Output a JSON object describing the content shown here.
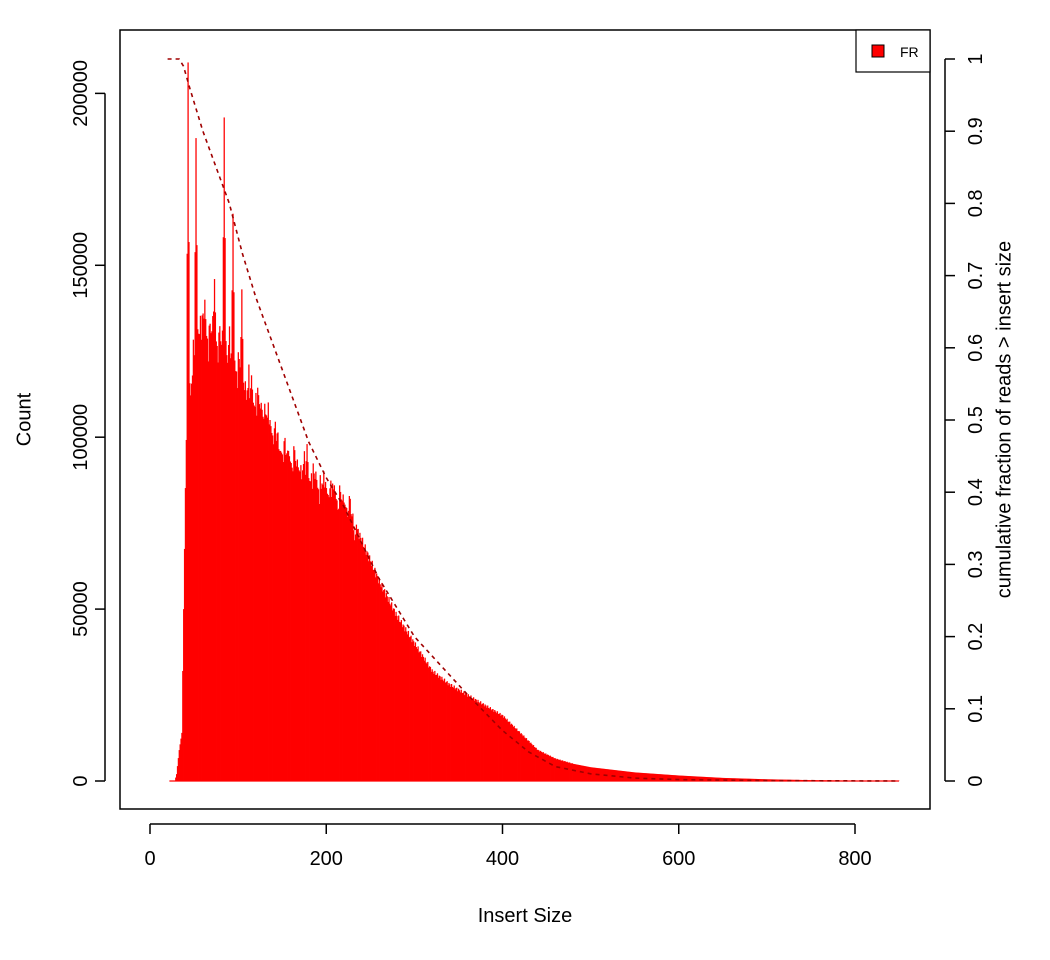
{
  "chart_data": {
    "type": "bar",
    "title": "",
    "xlabel": "Insert Size",
    "ylabel": "Count",
    "y2label": "cumulative fraction of reads > insert size",
    "xlim": [
      0,
      900
    ],
    "ylim": [
      0,
      210000
    ],
    "y2lim": [
      0,
      1
    ],
    "x_ticks": [
      0,
      200,
      400,
      600,
      800
    ],
    "y_ticks": [
      0,
      50000,
      100000,
      150000,
      200000
    ],
    "y2_ticks": [
      0,
      0.1,
      0.2,
      0.3,
      0.4,
      0.5,
      0.6,
      0.7,
      0.8,
      0.9,
      1
    ],
    "legend": {
      "position": "top-right",
      "entries": [
        {
          "label": "FR",
          "color": "#ff0000"
        }
      ]
    },
    "series": [
      {
        "name": "FR",
        "kind": "histogram",
        "color": "#ff0000",
        "bin_width": 1,
        "x_range": [
          22,
          850
        ],
        "profile_points": [
          [
            22,
            0
          ],
          [
            28,
            0
          ],
          [
            30,
            2000
          ],
          [
            33,
            9000
          ],
          [
            36,
            14000
          ],
          [
            38,
            50000
          ],
          [
            40,
            85000
          ],
          [
            42,
            100000
          ],
          [
            45,
            110000
          ],
          [
            55,
            130000
          ],
          [
            70,
            128000
          ],
          [
            90,
            123000
          ],
          [
            110,
            112000
          ],
          [
            130,
            105000
          ],
          [
            150,
            95000
          ],
          [
            170,
            90000
          ],
          [
            190,
            85000
          ],
          [
            210,
            82000
          ],
          [
            225,
            79000
          ],
          [
            240,
            70000
          ],
          [
            260,
            58000
          ],
          [
            280,
            48000
          ],
          [
            300,
            40000
          ],
          [
            320,
            32000
          ],
          [
            340,
            28000
          ],
          [
            360,
            25000
          ],
          [
            380,
            22000
          ],
          [
            400,
            19000
          ],
          [
            420,
            14000
          ],
          [
            440,
            9000
          ],
          [
            460,
            6500
          ],
          [
            480,
            5000
          ],
          [
            500,
            4000
          ],
          [
            550,
            2500
          ],
          [
            600,
            1600
          ],
          [
            650,
            900
          ],
          [
            700,
            500
          ],
          [
            750,
            250
          ],
          [
            800,
            120
          ],
          [
            850,
            50
          ]
        ],
        "spikes": [
          [
            43,
            209000
          ],
          [
            52,
            187000
          ],
          [
            62,
            140000
          ],
          [
            73,
            146000
          ],
          [
            84,
            193000
          ],
          [
            94,
            165000
          ],
          [
            104,
            143000
          ],
          [
            115,
            118000
          ],
          [
            126,
            110000
          ],
          [
            136,
            105000
          ],
          [
            147,
            96000
          ],
          [
            157,
            96000
          ],
          [
            167,
            92000
          ],
          [
            178,
            98000
          ],
          [
            188,
            90000
          ],
          [
            199,
            87000
          ],
          [
            209,
            86000
          ],
          [
            220,
            81000
          ]
        ]
      },
      {
        "name": "cumulative",
        "kind": "line",
        "style": "dashed",
        "color": "#a00000",
        "axis": "right",
        "points": [
          [
            20,
            1.0
          ],
          [
            33,
            1.0
          ],
          [
            38,
            0.99
          ],
          [
            45,
            0.96
          ],
          [
            60,
            0.9
          ],
          [
            75,
            0.85
          ],
          [
            90,
            0.8
          ],
          [
            105,
            0.73
          ],
          [
            120,
            0.67
          ],
          [
            135,
            0.62
          ],
          [
            150,
            0.57
          ],
          [
            165,
            0.52
          ],
          [
            180,
            0.47
          ],
          [
            200,
            0.42
          ],
          [
            220,
            0.38
          ],
          [
            240,
            0.33
          ],
          [
            260,
            0.28
          ],
          [
            280,
            0.24
          ],
          [
            300,
            0.2
          ],
          [
            330,
            0.16
          ],
          [
            360,
            0.12
          ],
          [
            400,
            0.07
          ],
          [
            430,
            0.04
          ],
          [
            460,
            0.02
          ],
          [
            500,
            0.01
          ],
          [
            550,
            0.004
          ],
          [
            600,
            0.002
          ],
          [
            700,
            0.0005
          ],
          [
            850,
            0.0
          ]
        ]
      }
    ]
  }
}
